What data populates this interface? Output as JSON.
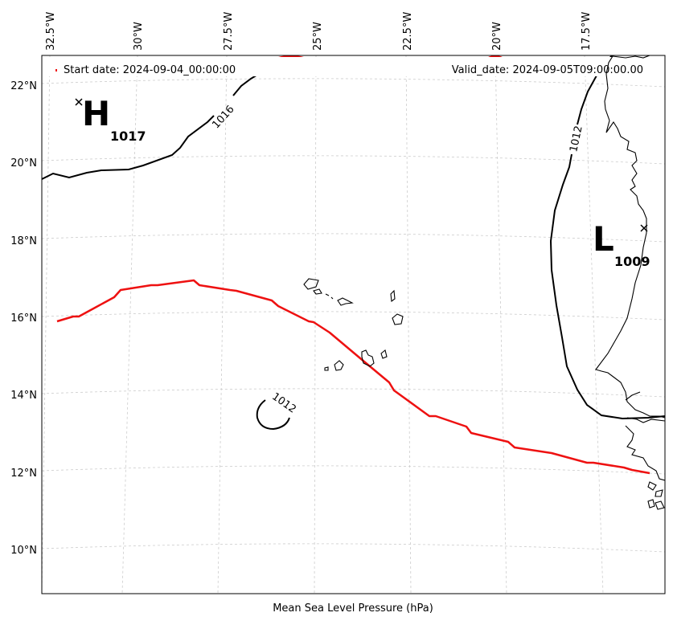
{
  "map": {
    "legend": {
      "start_label": "Start date: 2024-09-04_00:00:00",
      "valid_label": "Valid_date: 2024-09-05T09:00:00.00"
    },
    "xlabel": "Mean Sea Level Pressure (hPa)",
    "lon_ticks": [
      "32.5°W",
      "30°W",
      "27.5°W",
      "25°W",
      "22.5°W",
      "20°W",
      "17.5°W"
    ],
    "lat_ticks": [
      "22°N",
      "20°N",
      "18°N",
      "16°N",
      "14°N",
      "12°N",
      "10°N"
    ],
    "pressure_centers": [
      {
        "type": "H",
        "value": "1017",
        "lon": -32.0,
        "lat": 21.6
      },
      {
        "type": "L",
        "value": "1009",
        "lon": -16.0,
        "lat": 18.3
      }
    ],
    "contour_labels": [
      "1016",
      "1012",
      "1012"
    ],
    "colors": {
      "isobar": "#000000",
      "track": "#ee1111",
      "grid": "#cccccc",
      "coast": "#000000"
    }
  }
}
